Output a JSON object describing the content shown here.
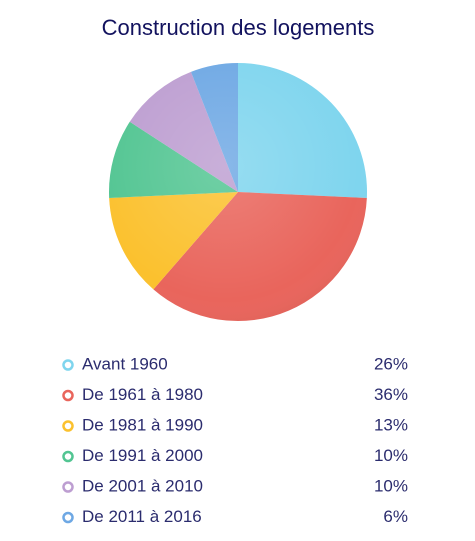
{
  "chart_data": {
    "type": "pie",
    "title": "Construction des logements",
    "categories": [
      "Avant 1960",
      "De 1961 à 1980",
      "De 1981 à 1990",
      "De 1991 à 2000",
      "De 2001 à 2010",
      "De 2011 à 2016"
    ],
    "values": [
      26,
      36,
      13,
      10,
      10,
      6
    ],
    "value_labels": [
      "26%",
      "36%",
      "13%",
      "10%",
      "10%",
      "6%"
    ],
    "colors": [
      "#7fd5ee",
      "#e9655c",
      "#fbc12e",
      "#52c592",
      "#bd9ed1",
      "#6ea8e4"
    ]
  }
}
